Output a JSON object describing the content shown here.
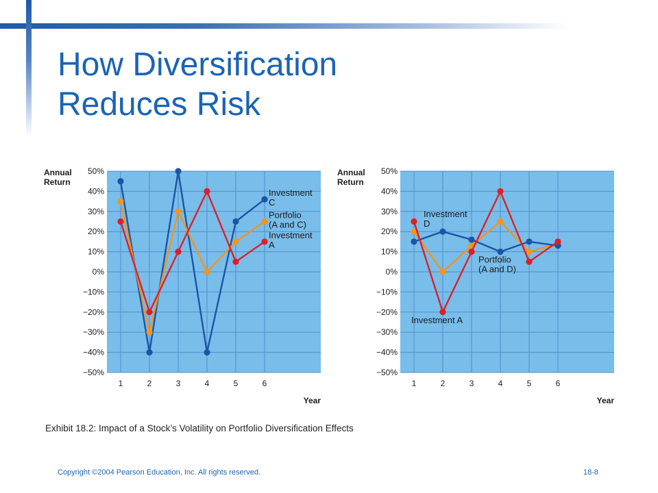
{
  "title_lines": [
    "How Diversification",
    "Reduces Risk"
  ],
  "caption": "Exhibit 18.2: Impact of a Stock’s Volatility on Portfolio Diversification Effects",
  "footer": {
    "copyright": "Copyright ©2004 Pearson Education, Inc. All rights reserved.",
    "page": "18-8"
  },
  "colors": {
    "plot_bg": "#79bdea",
    "grid": "#4f8fc9",
    "blue": "#1a55a6",
    "orange": "#f3941f",
    "red": "#dd1f26",
    "text": "#1b1b1b"
  },
  "chart_data": [
    {
      "type": "line",
      "ylabel": "Annual\nReturn",
      "xlabel": "Year",
      "ylim": [
        -50,
        50
      ],
      "y_ticks": [
        50,
        40,
        30,
        20,
        10,
        0,
        -10,
        -20,
        -30,
        -40,
        -50
      ],
      "y_tick_labels": [
        "50%",
        "40%",
        "30%",
        "20%",
        "10%",
        "0%",
        "−10%",
        "−20%",
        "−30%",
        "−40%",
        "−50%"
      ],
      "x": [
        1,
        2,
        3,
        4,
        5,
        6
      ],
      "x_tick_labels": [
        "1",
        "2",
        "3",
        "4",
        "5",
        "6"
      ],
      "grid": true,
      "series": [
        {
          "name": "Investment\nC",
          "color": "blue",
          "values": [
            45,
            -40,
            50,
            -40,
            25,
            36
          ],
          "label_anchor": "end"
        },
        {
          "name": "Portfolio\n(A and C)",
          "color": "orange",
          "values": [
            35,
            -30,
            30,
            0,
            15,
            25
          ],
          "label_anchor": "end"
        },
        {
          "name": "Investment\nA",
          "color": "red",
          "values": [
            25,
            -20,
            10,
            40,
            5,
            15
          ],
          "label_anchor": "end"
        }
      ]
    },
    {
      "type": "line",
      "ylabel": "Annual\nReturn",
      "xlabel": "Year",
      "ylim": [
        -50,
        50
      ],
      "y_ticks": [
        50,
        40,
        30,
        20,
        10,
        0,
        -10,
        -20,
        -30,
        -40,
        -50
      ],
      "y_tick_labels": [
        "50%",
        "40%",
        "30%",
        "20%",
        "10%",
        "0%",
        "−10%",
        "−20%",
        "−30%",
        "−40%",
        "−50%"
      ],
      "x": [
        1,
        2,
        3,
        4,
        5,
        6
      ],
      "x_tick_labels": [
        "1",
        "2",
        "3",
        "4",
        "5",
        "6"
      ],
      "grid": true,
      "series": [
        {
          "name": "Portfolio\n(A and D)",
          "color": "orange",
          "values": [
            20,
            0,
            13,
            25,
            10,
            14
          ],
          "label_anchor": "below-mid"
        },
        {
          "name": "Investment\nD",
          "color": "blue",
          "values": [
            15,
            20,
            16,
            10,
            15,
            13
          ],
          "label_anchor": "above-start"
        },
        {
          "name": "Investment A",
          "color": "red",
          "values": [
            25,
            -20,
            10,
            40,
            5,
            15
          ],
          "label_anchor": "below-start"
        }
      ]
    }
  ]
}
